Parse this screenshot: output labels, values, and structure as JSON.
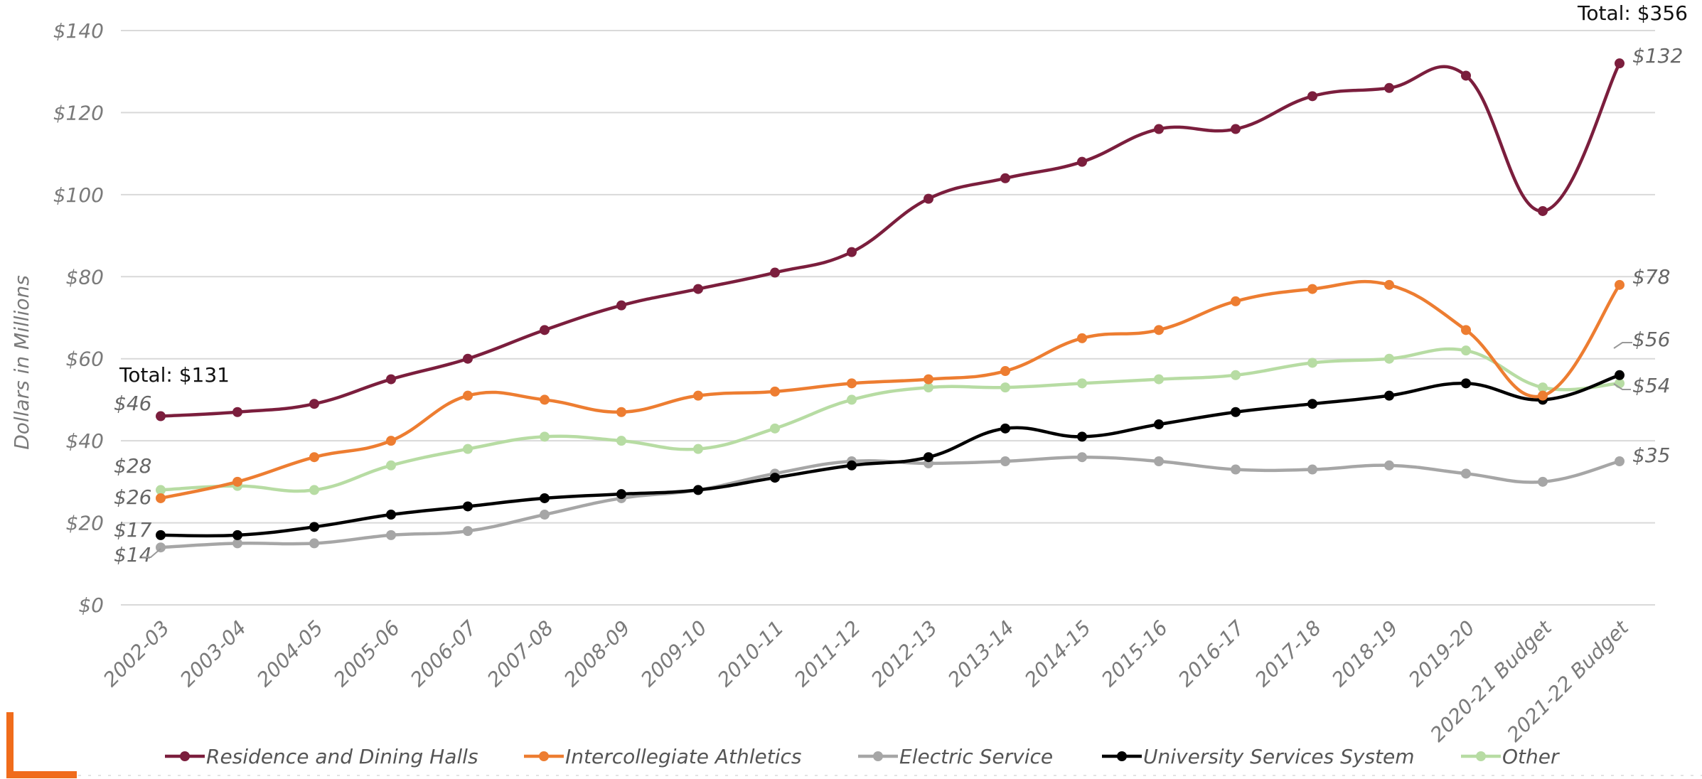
{
  "chart_data": {
    "type": "line",
    "ylabel": "Dollars in Millions",
    "ylim": [
      0,
      140
    ],
    "yticks": [
      "$0",
      "$20",
      "$40",
      "$60",
      "$80",
      "$100",
      "$120",
      "$140"
    ],
    "categories": [
      "2002-03",
      "2003-04",
      "2004-05",
      "2005-06",
      "2006-07",
      "2007-08",
      "2008-09",
      "2009-10",
      "2010-11",
      "2011-12",
      "2012-13",
      "2013-14",
      "2014-15",
      "2015-16",
      "2016-17",
      "2017-18",
      "2018-19",
      "2019-20",
      "2020-21 Budget",
      "2021-22 Budget"
    ],
    "grid": true,
    "legend_position": "bottom",
    "series": [
      {
        "name": "Residence and Dining Halls",
        "color": "#7B1E3D",
        "values": [
          46,
          47,
          49,
          55,
          60,
          67,
          73,
          77,
          81,
          86,
          99,
          104,
          108,
          116,
          116,
          124,
          126,
          129,
          96,
          132
        ]
      },
      {
        "name": "Intercollegiate Athletics",
        "color": "#ED7D31",
        "values": [
          26,
          30,
          36,
          40,
          51,
          50,
          47,
          51,
          52,
          54,
          55,
          57,
          65,
          67,
          74,
          77,
          78,
          67,
          51,
          78
        ]
      },
      {
        "name": "Electric Service",
        "color": "#A6A6A6",
        "values": [
          14,
          15,
          15,
          17,
          18,
          22,
          26,
          28,
          32,
          35,
          34.5,
          35,
          36,
          35,
          33,
          33,
          34,
          32,
          30,
          35
        ]
      },
      {
        "name": "University Services System",
        "color": "#000000",
        "values": [
          17,
          17,
          19,
          22,
          24,
          26,
          27,
          28,
          31,
          34,
          36,
          43,
          41,
          44,
          47,
          49,
          51,
          54,
          50,
          56
        ]
      },
      {
        "name": "Other",
        "color": "#B7DCA3",
        "values": [
          28,
          29,
          28,
          34,
          38,
          41,
          40,
          38,
          43,
          50,
          53,
          53,
          54,
          55,
          56,
          59,
          60,
          62,
          53,
          54
        ]
      }
    ],
    "annotations": {
      "total_start": "Total: $131",
      "total_end": "Total: $356",
      "start_labels": [
        "$46",
        "$28",
        "$26",
        "$17",
        "$14"
      ],
      "end_labels": [
        "$132",
        "$78",
        "$56",
        "$54",
        "$35"
      ]
    }
  }
}
